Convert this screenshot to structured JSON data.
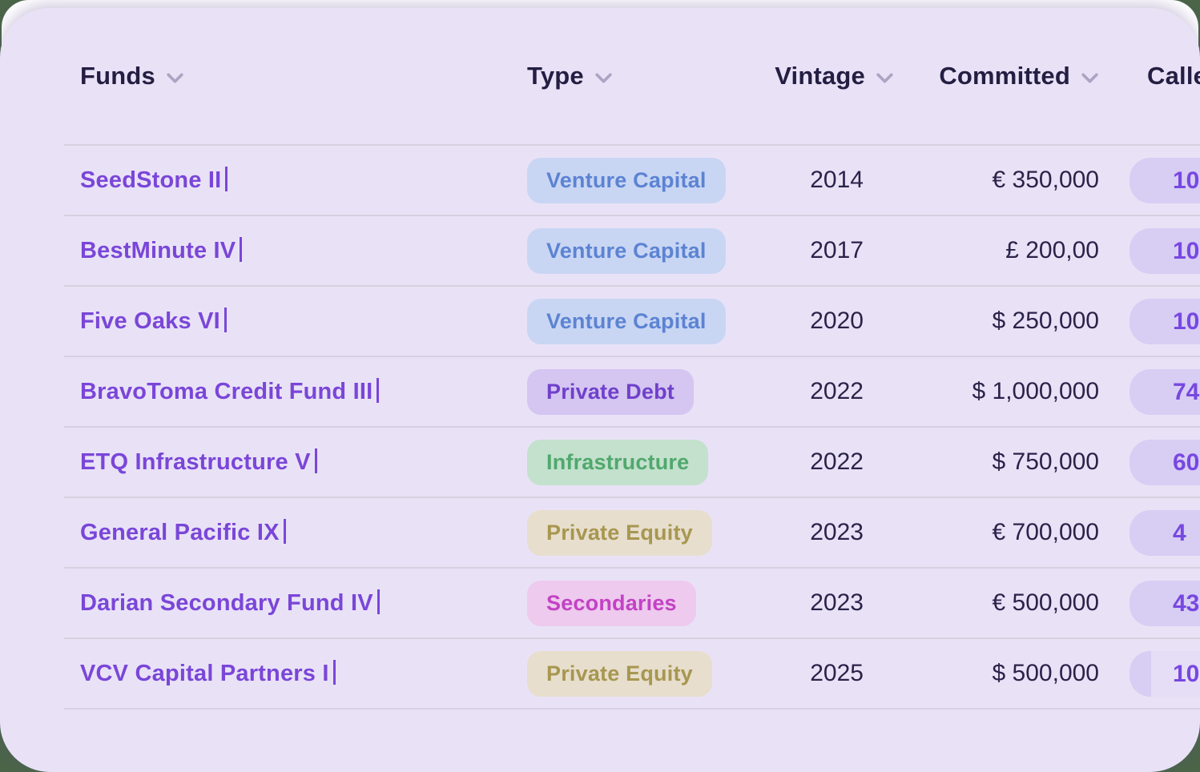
{
  "table": {
    "columns": [
      {
        "label": "Funds"
      },
      {
        "label": "Type"
      },
      {
        "label": "Vintage"
      },
      {
        "label": "Committed"
      },
      {
        "label": "Called"
      }
    ],
    "rows": [
      {
        "fund": "SeedStone II",
        "type": "Venture Capital",
        "vintage": "2014",
        "committed": "€ 350,000",
        "called": "10",
        "called_fill": "full",
        "editing": false
      },
      {
        "fund": "BestMinute IV",
        "type": "Venture Capital",
        "vintage": "2017",
        "committed": "£ 200,00",
        "called": "10",
        "called_fill": "full",
        "editing": false
      },
      {
        "fund": "Five Oaks VI",
        "type": "Venture Capital",
        "vintage": "2020",
        "committed": "$ 250,000",
        "called": "10",
        "called_fill": "full",
        "editing": false
      },
      {
        "fund": "BravoToma Credit Fund III",
        "type": "Private Debt",
        "vintage": "2022",
        "committed": "$ 1,000,000",
        "called": "74",
        "called_fill": "full",
        "editing": false
      },
      {
        "fund": "ETQ Infrastructure V",
        "type": "Infrastructure",
        "vintage": "2022",
        "committed": "$ 750,000",
        "called": "60",
        "called_fill": "full",
        "editing": false
      },
      {
        "fund": "General Pacific IX",
        "type": "Private Equity",
        "vintage": "2023",
        "committed": "€ 700,000",
        "called": "4",
        "called_fill": "full",
        "editing": false
      },
      {
        "fund": "Darian Secondary Fund IV",
        "type": "Secondaries",
        "vintage": "2023",
        "committed": "€ 500,000",
        "called": "43",
        "called_fill": "full",
        "editing": false
      },
      {
        "fund": "VCV Capital Partners I",
        "type": "Private Equity",
        "vintage": "2025",
        "committed": "$ 500,000",
        "called": "10",
        "called_fill": "low",
        "editing": true
      }
    ]
  },
  "type_styles": {
    "Venture Capital": {
      "bg": "#c9d6f3",
      "text": "#5c83d3"
    },
    "Private Debt": {
      "bg": "#d4c5f1",
      "text": "#7040cb"
    },
    "Infrastructure": {
      "bg": "#c3e1cd",
      "text": "#50a86d"
    },
    "Private Equity": {
      "bg": "#e7decd",
      "text": "#a79750"
    },
    "Secondaries": {
      "bg": "#edcaee",
      "text": "#c342c4"
    }
  },
  "colors": {
    "page_background": "#4b6549",
    "card_background": "#e9e2f7",
    "header_text": "#241e42",
    "fund_link": "#7a46d8",
    "value_text": "#2a2349",
    "divider": "#d6d1e0",
    "called_badge_fill": "#d8cdf3",
    "called_badge_text": "#7748e1",
    "chevron": "#aba5c4"
  }
}
